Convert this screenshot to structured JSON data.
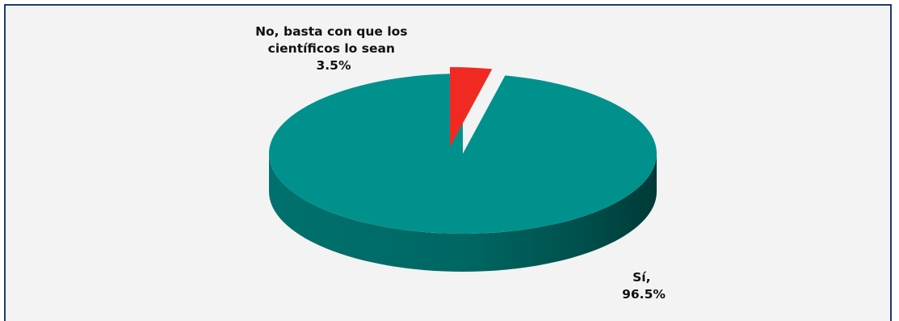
{
  "chart_data": {
    "type": "pie",
    "title": "",
    "style": "3d-exploded",
    "slices": [
      {
        "label_lines": [
          "No, basta con que los",
          "científicos lo sean",
          "3.5%"
        ],
        "value": 3.5,
        "color": "#f02a22"
      },
      {
        "label_lines": [
          "Sí,",
          "96.5%"
        ],
        "value": 96.5,
        "color": "#00918d"
      }
    ],
    "legend": "none",
    "border_color": "#1f3c63",
    "background": "#f3f3f3"
  }
}
